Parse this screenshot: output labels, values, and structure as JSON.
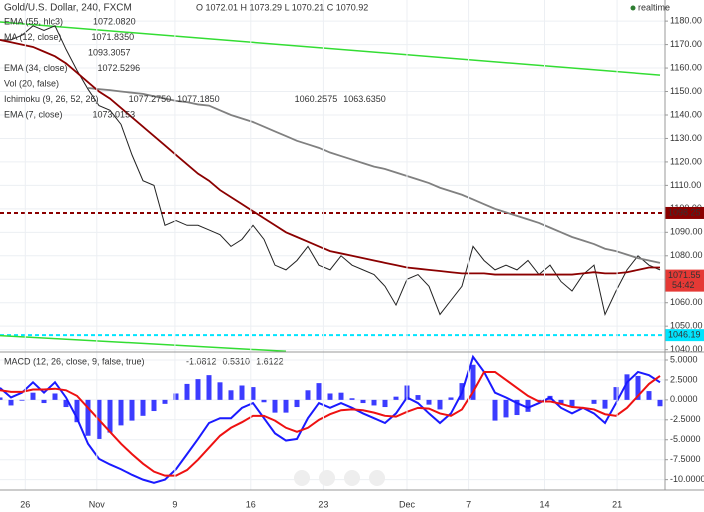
{
  "chart_data": [
    {
      "type": "line",
      "title": "Gold/U.S. Dollar, 240, FXCM",
      "ohlc_text": "O 1072.01 H 1073.29 L 1070.21 C 1070.92",
      "status": "realtime",
      "indicator_legend": [
        {
          "name": "EMA (55, hlc3)",
          "readings": [
            "1072.0820"
          ]
        },
        {
          "name": "MA (12, close)",
          "readings": [
            "1071.8350"
          ]
        },
        {
          "readings": [
            "1093.3057"
          ]
        },
        {
          "name": "EMA (34, close)",
          "readings": [
            "1072.5296"
          ]
        },
        {
          "name": "Vol (20, false)",
          "readings": []
        },
        {
          "name": "Ichimoku (9, 26, 52, 26)",
          "readings": [
            "1077.2750",
            "1077.1850",
            "1060.2575",
            "1063.6350"
          ]
        },
        {
          "name": "EMA (7, close)",
          "readings": [
            "1073.0153"
          ]
        }
      ],
      "x": [
        0,
        1,
        2,
        3,
        4,
        5,
        6,
        7,
        8,
        9,
        10,
        11,
        12,
        13,
        14,
        15,
        16,
        17,
        18,
        19,
        20,
        21,
        22,
        23,
        24,
        25,
        26,
        27,
        28,
        29,
        30,
        31,
        32,
        33,
        34,
        35,
        36,
        37,
        38,
        39,
        40,
        41,
        42,
        43,
        44,
        45,
        46,
        47,
        48,
        49,
        50,
        51,
        52,
        53,
        54,
        55,
        56,
        57,
        58,
        59,
        60
      ],
      "xlim": [
        0,
        60
      ],
      "ylim": [
        1039,
        1189
      ],
      "yticks": [
        {
          "value": 1040,
          "label": "1040.00"
        },
        {
          "value": 1050,
          "label": "1050.00"
        },
        {
          "value": 1060,
          "label": "1060.00"
        },
        {
          "value": 1070,
          "label": "1070.00"
        },
        {
          "value": 1080,
          "label": "1080.00"
        },
        {
          "value": 1090,
          "label": "1090.00"
        },
        {
          "value": 1100,
          "label": "1100.00"
        },
        {
          "value": 1110,
          "label": "1110.00"
        },
        {
          "value": 1120,
          "label": "1120.00"
        },
        {
          "value": 1130,
          "label": "1130.00"
        },
        {
          "value": 1140,
          "label": "1140.00"
        },
        {
          "value": 1150,
          "label": "1150.00"
        },
        {
          "value": 1160,
          "label": "1160.00"
        },
        {
          "value": 1170,
          "label": "1170.00"
        },
        {
          "value": 1180,
          "label": "1180.00"
        }
      ],
      "grid": true,
      "series": [
        {
          "name": "Close",
          "color": "#222222",
          "values": [
            1172,
            1172,
            1174,
            1178,
            1176,
            1178,
            1168,
            1159,
            1151,
            1144,
            1142,
            1136,
            1123,
            1112,
            1110,
            1093,
            1095,
            1093,
            1093,
            1091,
            1089,
            1084,
            1087,
            1093,
            1087,
            1076,
            1074,
            1078,
            1084,
            1076,
            1074,
            1080,
            1076,
            1074,
            1072,
            1067,
            1059,
            1070,
            1072,
            1067,
            1055,
            1061,
            1067,
            1084,
            1078,
            1074,
            1076,
            1074,
            1078,
            1072,
            1076,
            1069,
            1065,
            1072,
            1076,
            1055,
            1065,
            1074,
            1080,
            1076,
            1074
          ]
        },
        {
          "name": "SMA",
          "color": "#808080",
          "values": [
            null,
            null,
            null,
            null,
            null,
            null,
            null,
            null,
            1151.5,
            1151,
            1150.6,
            1150,
            1149.5,
            1149,
            1148,
            1147,
            1146,
            1145.5,
            1144.5,
            1144,
            1142,
            1140,
            1138.5,
            1137,
            1135,
            1133,
            1131,
            1129,
            1127.5,
            1126,
            1124,
            1122.5,
            1121,
            1119.5,
            1118,
            1117,
            1115.5,
            1114,
            1112.5,
            1111,
            1109,
            1107.5,
            1106,
            1104,
            1102,
            1100,
            1098.5,
            1097,
            1095.5,
            1094,
            1092,
            1090,
            1088,
            1086.5,
            1085,
            1083,
            1082,
            1080.5,
            1079,
            1078,
            1077
          ]
        },
        {
          "name": "EMA (55, hlc3)",
          "color": "#8b0000",
          "values": [
            1172,
            1171,
            1170,
            1169,
            1167,
            1165,
            1162,
            1158,
            1154,
            1150,
            1147,
            1143,
            1139,
            1135,
            1131,
            1127,
            1123,
            1119,
            1115,
            1112,
            1108,
            1105,
            1102,
            1099,
            1096,
            1093,
            1090,
            1088,
            1086,
            1084,
            1082,
            1081,
            1080,
            1079,
            1078,
            1077,
            1076,
            1075,
            1074.5,
            1074,
            1073.5,
            1073,
            1072.5,
            1072.5,
            1072.5,
            1072,
            1072,
            1072,
            1072,
            1072,
            1072,
            1072,
            1072,
            1072.5,
            1073,
            1072.5,
            1072.5,
            1073,
            1074,
            1075,
            1075
          ]
        }
      ],
      "hlines": [
        {
          "value": 1098.25,
          "label": "1098.25",
          "color": "#8b0000"
        },
        {
          "value": 1046.19,
          "label": "1046.19",
          "color": "#00e5ff"
        }
      ],
      "last_price": {
        "value": 1071.55,
        "label": "1071.55",
        "countdown": "54:42",
        "color": "#e53935"
      },
      "trendlines": [
        {
          "x": [
            0,
            60
          ],
          "y": [
            1179.6,
            1157
          ],
          "color": "#33dd33"
        },
        {
          "x": [
            0,
            26
          ],
          "y": [
            1046,
            1039.3
          ],
          "color": "#33dd33"
        }
      ]
    },
    {
      "type": "macd",
      "title": "MACD (12, 26, close, 9, false, true)",
      "readings": [
        "-1.0812",
        "0.5310",
        "1.6122"
      ],
      "x": [
        0,
        1,
        2,
        3,
        4,
        5,
        6,
        7,
        8,
        9,
        10,
        11,
        12,
        13,
        14,
        15,
        16,
        17,
        18,
        19,
        20,
        21,
        22,
        23,
        24,
        25,
        26,
        27,
        28,
        29,
        30,
        31,
        32,
        33,
        34,
        35,
        36,
        37,
        38,
        39,
        40,
        41,
        42,
        43,
        44,
        45,
        46,
        47,
        48,
        49,
        50,
        51,
        52,
        53,
        54,
        55,
        56,
        57,
        58,
        59,
        60
      ],
      "xlim": [
        0,
        60
      ],
      "ylim": [
        -11.3,
        6
      ],
      "yticks": [
        {
          "value": -10,
          "label": "-10.0000"
        },
        {
          "value": -7.5,
          "label": "-7.5000"
        },
        {
          "value": -5,
          "label": "-5.0000"
        },
        {
          "value": -2.5,
          "label": "-2.5000"
        },
        {
          "value": 0,
          "label": "0.0000"
        },
        {
          "value": 2.5,
          "label": "2.5000"
        },
        {
          "value": 5,
          "label": "5.0000"
        }
      ],
      "xticks": [
        {
          "value": 2.3,
          "label": "26"
        },
        {
          "value": 8.8,
          "label": "Nov"
        },
        {
          "value": 15.9,
          "label": "9"
        },
        {
          "value": 22.8,
          "label": "16"
        },
        {
          "value": 29.4,
          "label": "23"
        },
        {
          "value": 37,
          "label": "Dec"
        },
        {
          "value": 42.6,
          "label": "7"
        },
        {
          "value": 49.5,
          "label": "14"
        },
        {
          "value": 56.1,
          "label": "21"
        }
      ],
      "grid": true,
      "histogram": {
        "name": "Histogram",
        "color": "#1a1aff",
        "values": [
          0.3,
          -0.7,
          -0.1,
          0.9,
          -0.4,
          0.8,
          -0.9,
          -2.8,
          -4.5,
          -4.9,
          -4.1,
          -3.2,
          -2.6,
          -2,
          -1.4,
          -0.5,
          0.8,
          2,
          2.6,
          3.1,
          2.2,
          1.2,
          1.8,
          1.6,
          -0.3,
          -1.6,
          -1.6,
          -0.9,
          1.2,
          2.1,
          0.8,
          0.9,
          0.2,
          -0.4,
          -0.7,
          -0.9,
          0.4,
          1.8,
          0.6,
          -0.6,
          -1.2,
          0.3,
          2.1,
          4.4,
          0,
          -2.6,
          -2.2,
          -1.9,
          -1.5,
          -0.2,
          0.5,
          -0.5,
          -0.8,
          0,
          -0.5,
          -1.1,
          1.6,
          3.2,
          3,
          1.1,
          -0.8
        ]
      },
      "series": [
        {
          "name": "MACD",
          "color": "#1a1aff",
          "values": [
            1.5,
            0.3,
            0.9,
            2.2,
            0.9,
            2.2,
            0.3,
            -2.3,
            -5.5,
            -7.4,
            -8.1,
            -8.7,
            -9.4,
            -10,
            -10.4,
            -10,
            -8.7,
            -6.8,
            -4.9,
            -2.9,
            -2.3,
            -2.3,
            -1,
            -0.4,
            -2.3,
            -4.2,
            -5.1,
            -4.9,
            -2.3,
            -0.4,
            -1,
            -0.4,
            -1,
            -1.7,
            -2.3,
            -2.9,
            -1.7,
            0.3,
            -0.4,
            -1.7,
            -2.9,
            -1.7,
            0.9,
            5.4,
            3.5,
            0.9,
            0.3,
            -0.4,
            -1,
            -0.4,
            0.3,
            -1,
            -1.7,
            -1,
            -1.7,
            -2.9,
            -0.4,
            2.2,
            3.5,
            3.1,
            2.2
          ]
        },
        {
          "name": "Signal",
          "color": "#ee1111",
          "values": [
            1.2,
            1,
            1,
            1.3,
            1.3,
            1.4,
            1.2,
            0.5,
            -1,
            -2.5,
            -4,
            -5.5,
            -6.8,
            -8,
            -9,
            -9.5,
            -9.5,
            -8.8,
            -7.5,
            -6,
            -4.5,
            -3.5,
            -2.8,
            -2,
            -2,
            -2.6,
            -3.5,
            -4,
            -3.5,
            -2.5,
            -1.8,
            -1.3,
            -1.2,
            -1.3,
            -1.6,
            -2,
            -2.1,
            -1.5,
            -1,
            -1.1,
            -1.7,
            -2,
            -1.2,
            1,
            3.5,
            3.5,
            2.5,
            1.5,
            0.5,
            -0.2,
            -0.2,
            -0.5,
            -0.9,
            -1,
            -1.2,
            -1.8,
            -2,
            -1,
            0.5,
            2,
            3
          ]
        }
      ]
    }
  ]
}
